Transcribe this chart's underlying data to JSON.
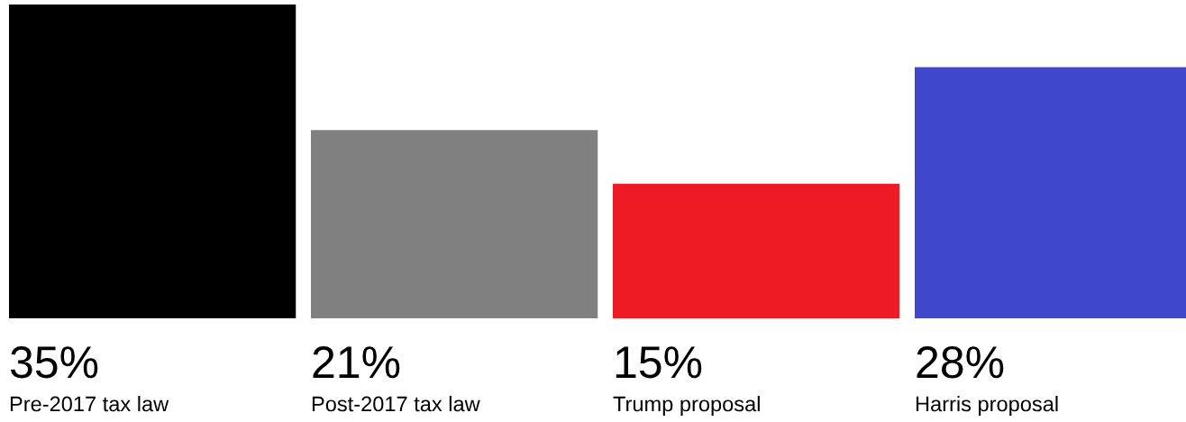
{
  "chart_data": {
    "type": "bar",
    "categories": [
      "Pre-2017 tax law",
      "Post-2017 tax law",
      "Trump proposal",
      "Harris proposal"
    ],
    "values": [
      35,
      21,
      15,
      28
    ],
    "colors": [
      "#000000",
      "#808080",
      "#ed1c24",
      "#3f48cc"
    ],
    "value_labels": [
      "35%",
      "21%",
      "15%",
      "28%"
    ]
  }
}
